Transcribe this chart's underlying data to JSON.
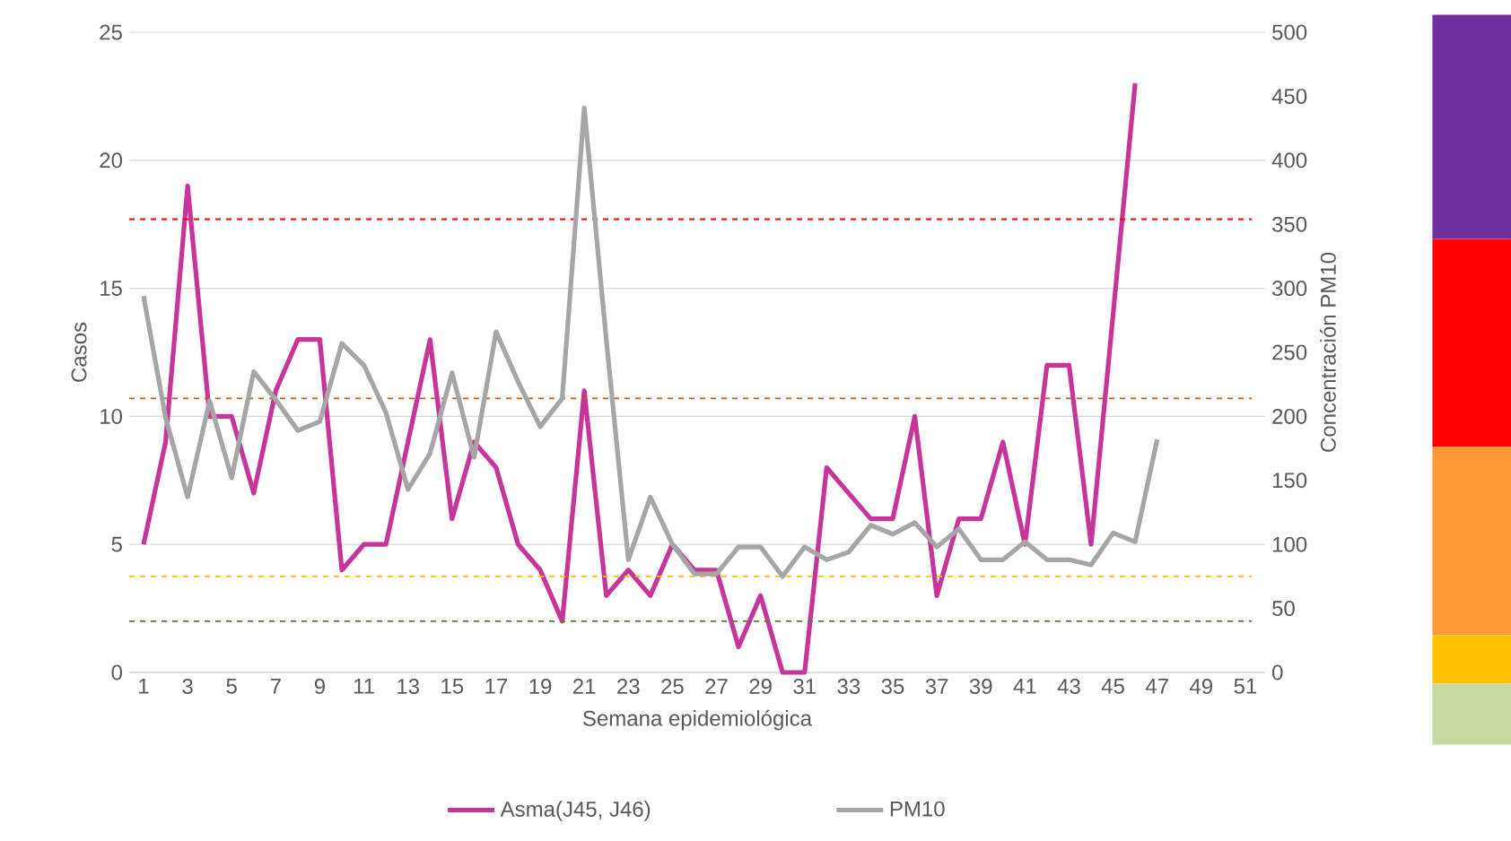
{
  "chart_data": {
    "type": "line",
    "xlabel": "Semana epidemiológica",
    "ylabel": "Casos",
    "y2label": "Concentración PM10",
    "xlim": [
      0.35,
      51.9
    ],
    "xticks": [
      1,
      3,
      5,
      7,
      9,
      11,
      13,
      15,
      17,
      19,
      21,
      23,
      25,
      27,
      29,
      31,
      33,
      35,
      37,
      39,
      41,
      43,
      45,
      47,
      49,
      51
    ],
    "ylim": [
      0,
      25
    ],
    "yticks": [
      0,
      5,
      10,
      15,
      20,
      25
    ],
    "y2lim": [
      0,
      500
    ],
    "y2ticks": [
      0,
      50,
      100,
      150,
      200,
      250,
      300,
      350,
      400,
      450,
      500
    ],
    "grid": "y",
    "legend": "bottom",
    "series": [
      {
        "name": "Asma(J45, J46)",
        "color": "#c8359a",
        "x": [
          1,
          2,
          3,
          4,
          5,
          6,
          7,
          8,
          9,
          10,
          11,
          12,
          13,
          14,
          15,
          16,
          17,
          18,
          19,
          20,
          21,
          22,
          23,
          24,
          25,
          26,
          27,
          28,
          29,
          30,
          31,
          32,
          33,
          34,
          35,
          36,
          37,
          38,
          39,
          40,
          41,
          42,
          43,
          44,
          45,
          46
        ],
        "values": [
          5,
          9,
          19,
          10,
          10,
          7,
          11,
          13,
          13,
          4,
          5,
          5,
          9,
          13,
          6,
          9,
          8,
          5,
          4,
          2,
          11,
          3,
          4,
          3,
          5,
          4,
          4,
          1,
          3,
          0,
          0,
          8,
          7,
          6,
          6,
          10,
          3,
          6,
          6,
          9,
          5,
          12,
          12,
          5,
          14,
          23
        ]
      },
      {
        "name": "PM10",
        "color": "#a6a6a6",
        "axis": "y2",
        "x": [
          1,
          2,
          3,
          4,
          5,
          6,
          7,
          8,
          9,
          10,
          11,
          12,
          13,
          14,
          15,
          16,
          17,
          18,
          19,
          20,
          21,
          22,
          23,
          24,
          25,
          26,
          27,
          28,
          29,
          30,
          31,
          32,
          33,
          34,
          35,
          36,
          37,
          38,
          39,
          40,
          41,
          42,
          43,
          44,
          45,
          46,
          47
        ],
        "values": [
          294,
          199,
          137,
          212,
          152,
          235,
          213,
          189,
          196,
          257,
          240,
          203,
          143,
          171,
          234,
          168,
          266,
          227,
          192,
          214,
          441,
          260,
          88,
          137,
          100,
          77,
          77,
          98,
          98,
          75,
          98,
          88,
          94,
          115,
          108,
          117,
          98,
          112,
          88,
          88,
          102,
          88,
          88,
          84,
          109,
          102,
          182
        ]
      }
    ],
    "ref_lines": [
      {
        "axis": "y2",
        "value": 354,
        "color": "#ff0000",
        "line_style": "dashed"
      },
      {
        "axis": "y2",
        "value": 214,
        "color": "#c55a11",
        "line_style": "dashed"
      },
      {
        "axis": "y2",
        "value": 75,
        "color": "#ffc000",
        "line_style": "dashed"
      },
      {
        "axis": "y2",
        "value": 40,
        "color": "#548235",
        "line_style": "dashed"
      }
    ]
  }
}
